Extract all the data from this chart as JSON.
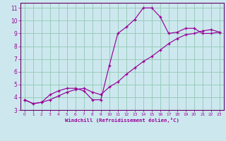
{
  "xlabel": "Windchill (Refroidissement éolien,°C)",
  "bg_color": "#cce8ee",
  "line_color": "#990099",
  "grid_color": "#99ccbb",
  "spine_color": "#660066",
  "xlim": [
    -0.5,
    23.5
  ],
  "ylim": [
    3,
    11.4
  ],
  "xticks": [
    0,
    1,
    2,
    3,
    4,
    5,
    6,
    7,
    8,
    9,
    10,
    11,
    12,
    13,
    14,
    15,
    16,
    17,
    18,
    19,
    20,
    21,
    22,
    23
  ],
  "yticks": [
    3,
    4,
    5,
    6,
    7,
    8,
    9,
    10,
    11
  ],
  "line1_x": [
    0,
    1,
    2,
    3,
    4,
    5,
    6,
    7,
    8,
    9,
    10,
    11,
    12,
    13,
    14,
    15,
    16,
    17,
    18,
    19,
    20,
    21,
    22,
    23
  ],
  "line1_y": [
    3.8,
    3.5,
    3.6,
    4.2,
    4.5,
    4.7,
    4.7,
    4.5,
    3.8,
    3.8,
    6.5,
    9.0,
    9.5,
    10.1,
    11.0,
    11.0,
    10.3,
    9.0,
    9.1,
    9.4,
    9.4,
    9.0,
    9.0,
    9.1
  ],
  "line2_x": [
    0,
    1,
    2,
    3,
    4,
    5,
    6,
    7,
    8,
    9,
    10,
    11,
    12,
    13,
    14,
    15,
    16,
    17,
    18,
    19,
    20,
    21,
    22,
    23
  ],
  "line2_y": [
    3.8,
    3.5,
    3.6,
    3.8,
    4.1,
    4.4,
    4.6,
    4.7,
    4.4,
    4.2,
    4.8,
    5.2,
    5.8,
    6.3,
    6.8,
    7.2,
    7.7,
    8.2,
    8.6,
    8.9,
    9.0,
    9.2,
    9.3,
    9.1
  ]
}
